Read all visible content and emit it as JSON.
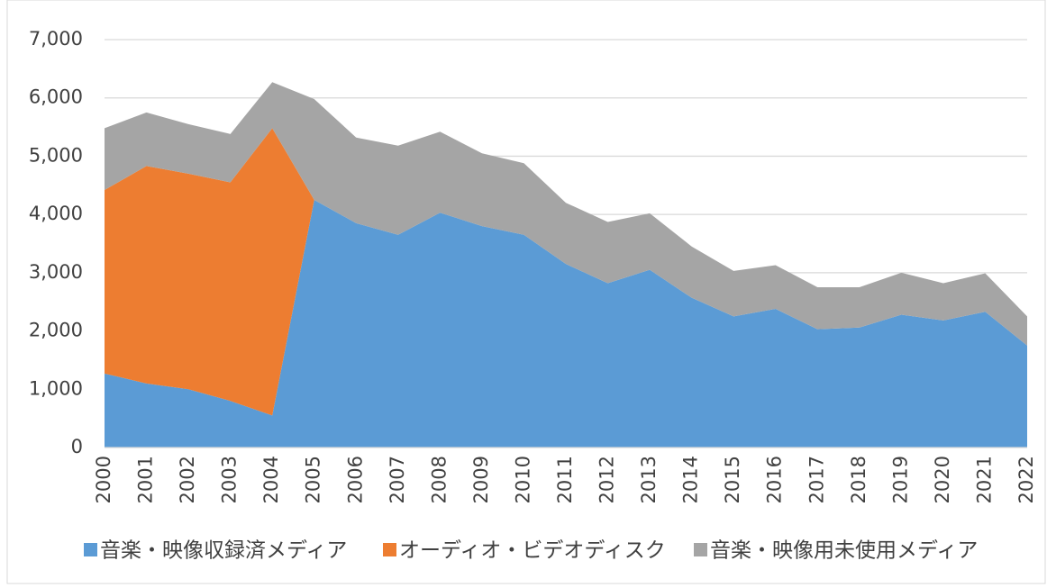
{
  "chart_data": {
    "type": "stacked_area",
    "categories": [
      "2000",
      "2001",
      "2002",
      "2003",
      "2004",
      "2005",
      "2006",
      "2007",
      "2008",
      "2009",
      "2010",
      "2011",
      "2012",
      "2013",
      "2014",
      "2015",
      "2016",
      "2017",
      "2018",
      "2019",
      "2020",
      "2021",
      "2022"
    ],
    "series": [
      {
        "name": "音楽・映像収録済メディア",
        "color": "#5b9bd5",
        "values": [
          1270,
          1100,
          1000,
          800,
          550,
          4250,
          3850,
          3650,
          4030,
          3800,
          3650,
          3150,
          2820,
          3050,
          2570,
          2250,
          2380,
          2030,
          2060,
          2280,
          2180,
          2330,
          1750
        ]
      },
      {
        "name": "オーディオ・ビデオディスク",
        "color": "#ed7d31",
        "values": [
          3150,
          3730,
          3700,
          3750,
          4930,
          0,
          0,
          0,
          0,
          0,
          0,
          0,
          0,
          0,
          0,
          0,
          0,
          0,
          0,
          0,
          0,
          0,
          0
        ]
      },
      {
        "name": "音楽・映像用未使用メディア",
        "color": "#a5a5a5",
        "values": [
          1060,
          920,
          850,
          830,
          790,
          1730,
          1470,
          1530,
          1390,
          1250,
          1230,
          1050,
          1050,
          970,
          880,
          780,
          750,
          720,
          690,
          720,
          640,
          660,
          500
        ]
      }
    ],
    "ylim": [
      0,
      7000
    ],
    "yticks": [
      0,
      {
        "value": 1000,
        "label": "1,000"
      },
      {
        "value": 2000,
        "label": "2,000"
      },
      {
        "value": 3000,
        "label": "3,000"
      },
      {
        "value": 4000,
        "label": "4,000"
      },
      {
        "value": 5000,
        "label": "5,000"
      },
      {
        "value": 6000,
        "label": "6,000"
      },
      {
        "value": 7000,
        "label": "7,000"
      }
    ],
    "grid": true,
    "legend": "bottom"
  }
}
